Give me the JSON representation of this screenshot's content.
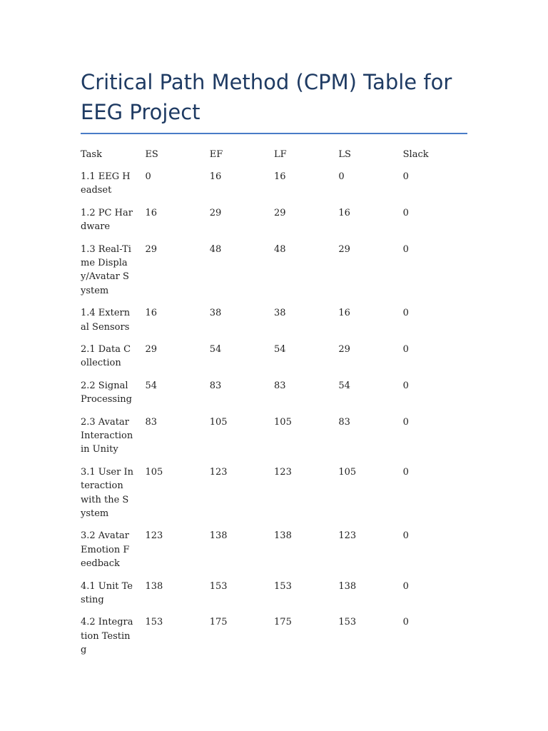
{
  "document": {
    "title": "Critical Path Method (CPM) Table for EEG Project"
  },
  "table": {
    "headers": [
      "Task",
      "ES",
      "EF",
      "LF",
      "LS",
      "Slack"
    ],
    "rows": [
      {
        "task": "1.1 EEG Headset",
        "es": "0",
        "ef": "16",
        "lf": "16",
        "ls": "0",
        "slack": "0"
      },
      {
        "task": "1.2 PC Hardware",
        "es": "16",
        "ef": "29",
        "lf": "29",
        "ls": "16",
        "slack": "0"
      },
      {
        "task": "1.3 Real-Time Display/Avatar System",
        "es": "29",
        "ef": "48",
        "lf": "48",
        "ls": "29",
        "slack": "0"
      },
      {
        "task": "1.4 External Sensors",
        "es": "16",
        "ef": "38",
        "lf": "38",
        "ls": "16",
        "slack": "0"
      },
      {
        "task": "2.1 Data Collection",
        "es": "29",
        "ef": "54",
        "lf": "54",
        "ls": "29",
        "slack": "0"
      },
      {
        "task": "2.2 Signal Processing",
        "es": "54",
        "ef": "83",
        "lf": "83",
        "ls": "54",
        "slack": "0"
      },
      {
        "task": "2.3 Avatar Interaction in Unity",
        "es": "83",
        "ef": "105",
        "lf": "105",
        "ls": "83",
        "slack": "0"
      },
      {
        "task": "3.1 User Interaction with the System",
        "es": "105",
        "ef": "123",
        "lf": "123",
        "ls": "105",
        "slack": "0"
      },
      {
        "task": "3.2 Avatar Emotion Feedback",
        "es": "123",
        "ef": "138",
        "lf": "138",
        "ls": "123",
        "slack": "0"
      },
      {
        "task": "4.1 Unit Testing",
        "es": "138",
        "ef": "153",
        "lf": "153",
        "ls": "138",
        "slack": "0"
      },
      {
        "task": "4.2 Integration Testing",
        "es": "153",
        "ef": "175",
        "lf": "175",
        "ls": "153",
        "slack": "0"
      }
    ]
  },
  "colors": {
    "title": "#1f3b63",
    "rule": "#4a7cc7",
    "text": "#222222"
  }
}
